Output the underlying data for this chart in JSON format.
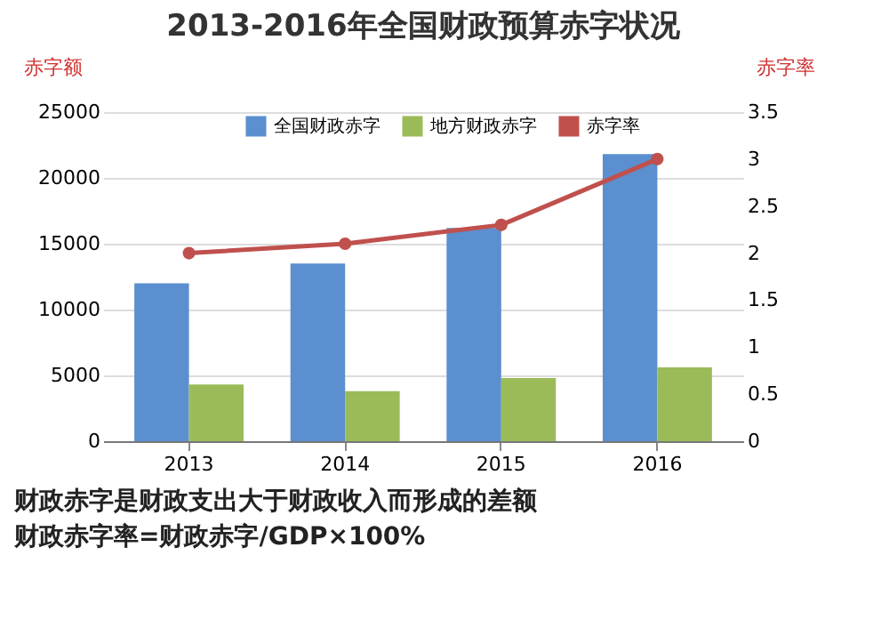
{
  "chart_data": {
    "type": "bar",
    "title": "2013-2016年全国财政预算赤字状况",
    "ylabel": "赤字额",
    "y2label": "赤字率",
    "categories": [
      "2013",
      "2014",
      "2015",
      "2016"
    ],
    "series": [
      {
        "name": "全国财政赤字",
        "color": "#5b8fcf",
        "values": [
          12000,
          13500,
          16200,
          21800
        ]
      },
      {
        "name": "地方财政赤字",
        "color": "#9bbb59",
        "values": [
          4300,
          3800,
          4800,
          5600
        ]
      },
      {
        "name": "赤字率",
        "type": "line",
        "axis": "y2",
        "color": "#c0504d",
        "values": [
          2.0,
          2.1,
          2.3,
          3.0
        ]
      }
    ],
    "ylim": [
      0,
      25000
    ],
    "yticks": [
      0,
      5000,
      10000,
      15000,
      20000,
      25000
    ],
    "y2lim": [
      0,
      3.5
    ],
    "y2ticks": [
      0,
      0.5,
      1,
      1.5,
      2,
      2.5,
      3,
      3.5
    ],
    "grid": "y",
    "legend": "top",
    "marker": "circle",
    "annotations": [
      "财政赤字是财政支出大于财政收入而形成的差额",
      "财政赤字率=财政赤字/GDP×100%"
    ]
  }
}
